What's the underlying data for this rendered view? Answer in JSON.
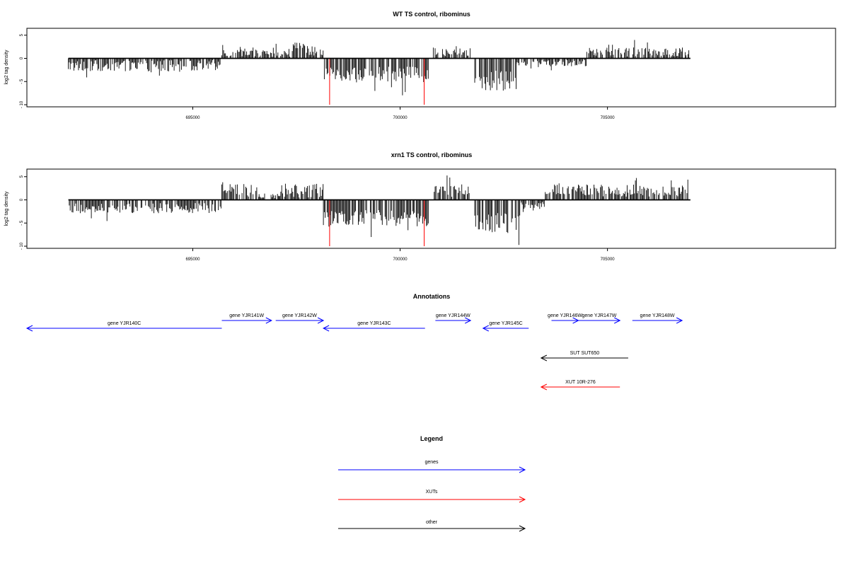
{
  "chart_data": [
    {
      "type": "bar",
      "title": "WT TS control, ribominus",
      "ylabel": "log2 tag density",
      "xlabel": "",
      "xlim": [
        691000,
        710500
      ],
      "ylim": [
        -10,
        6
      ],
      "yticks": [
        -10,
        -5,
        0,
        5
      ],
      "yticks_label": [
        "- 10",
        "- 5",
        "0",
        "5"
      ],
      "xticks": [
        695000,
        700000,
        705000
      ],
      "xticks_label": [
        "695000",
        "700000",
        "705000"
      ],
      "grid": false,
      "segments": [
        {
          "start": 692000,
          "end": 695700,
          "mean": -1.6,
          "amp": 1.2
        },
        {
          "start": 695700,
          "end": 697400,
          "mean": 1.1,
          "amp": 0.8
        },
        {
          "start": 697400,
          "end": 697700,
          "mean": 2.2,
          "amp": 1.2
        },
        {
          "start": 697700,
          "end": 698150,
          "mean": 1.2,
          "amp": 0.7
        },
        {
          "start": 698150,
          "end": 700700,
          "mean": -3.4,
          "amp": 1.6
        },
        {
          "start": 700800,
          "end": 701700,
          "mean": 1.6,
          "amp": 1.1
        },
        {
          "start": 701800,
          "end": 702800,
          "mean": -4.8,
          "amp": 2.2
        },
        {
          "start": 702800,
          "end": 703600,
          "mean": -1.0,
          "amp": 0.6
        },
        {
          "start": 703600,
          "end": 704500,
          "mean": -1.0,
          "amp": 0.7
        },
        {
          "start": 704500,
          "end": 707000,
          "mean": 1.4,
          "amp": 1.0
        }
      ],
      "markers": [
        {
          "x": 698300,
          "y": -10
        },
        {
          "x": 700580,
          "y": -10
        }
      ],
      "colors": {
        "bars": "#000000",
        "markers": "#ff0000"
      }
    },
    {
      "type": "bar",
      "title": "xrn1 TS control, ribominus",
      "ylabel": "log2 tag density",
      "xlabel": "",
      "xlim": [
        691000,
        710500
      ],
      "ylim": [
        -10,
        6
      ],
      "yticks": [
        -10,
        -5,
        0,
        5
      ],
      "yticks_label": [
        "- 10",
        "- 5",
        "0",
        "5"
      ],
      "xticks": [
        695000,
        700000,
        705000
      ],
      "xticks_label": [
        "695000",
        "700000",
        "705000"
      ],
      "grid": false,
      "segments": [
        {
          "start": 692000,
          "end": 695700,
          "mean": -1.8,
          "amp": 1.1
        },
        {
          "start": 695700,
          "end": 696600,
          "mean": 2.0,
          "amp": 1.4
        },
        {
          "start": 696600,
          "end": 697100,
          "mean": 0.8,
          "amp": 0.7
        },
        {
          "start": 697100,
          "end": 698150,
          "mean": 2.0,
          "amp": 1.5
        },
        {
          "start": 698150,
          "end": 700700,
          "mean": -4.0,
          "amp": 1.8
        },
        {
          "start": 700800,
          "end": 701700,
          "mean": 2.0,
          "amp": 1.4
        },
        {
          "start": 701800,
          "end": 702900,
          "mean": -5.0,
          "amp": 2.2
        },
        {
          "start": 702900,
          "end": 703500,
          "mean": -1.2,
          "amp": 0.8
        },
        {
          "start": 703500,
          "end": 707000,
          "mean": 2.0,
          "amp": 1.3
        }
      ],
      "markers": [
        {
          "x": 698300,
          "y": -10
        },
        {
          "x": 700580,
          "y": -10
        }
      ],
      "colors": {
        "bars": "#000000",
        "markers": "#ff0000"
      }
    }
  ],
  "annotations": {
    "title": "Annotations",
    "xlim": [
      691000,
      710500
    ],
    "colors": {
      "genes": "#0000ff",
      "XUTs": "#ff0000",
      "other": "#000000"
    },
    "items": [
      {
        "label": "gene YJR140C",
        "start": 691000,
        "end": 695700,
        "strand": "-",
        "row": 1,
        "kind": "genes"
      },
      {
        "label": "gene YJR141W",
        "start": 695700,
        "end": 696900,
        "strand": "+",
        "row": 0,
        "kind": "genes"
      },
      {
        "label": "gene YJR142W",
        "start": 697000,
        "end": 698150,
        "strand": "+",
        "row": 0,
        "kind": "genes"
      },
      {
        "label": "gene YJR143C",
        "start": 698150,
        "end": 700600,
        "strand": "-",
        "row": 1,
        "kind": "genes"
      },
      {
        "label": "gene YJR144W",
        "start": 700850,
        "end": 701700,
        "strand": "+",
        "row": 0,
        "kind": "genes"
      },
      {
        "label": "gene YJR145C",
        "start": 702000,
        "end": 703100,
        "strand": "-",
        "row": 1,
        "kind": "genes"
      },
      {
        "label": "gene YJR146W",
        "start": 703650,
        "end": 704300,
        "strand": "+",
        "row": 0,
        "kind": "genes"
      },
      {
        "label": "gene YJR147W",
        "start": 704300,
        "end": 705300,
        "strand": "+",
        "row": 0,
        "kind": "genes"
      },
      {
        "label": "gene YJR148W",
        "start": 705600,
        "end": 706800,
        "strand": "+",
        "row": 0,
        "kind": "genes"
      },
      {
        "label": "SUT SUT650",
        "start": 703400,
        "end": 705500,
        "strand": "-",
        "row": 2,
        "kind": "other"
      },
      {
        "label": "XUT 10R-276",
        "start": 703400,
        "end": 705300,
        "strand": "-",
        "row": 3,
        "kind": "XUTs"
      }
    ]
  },
  "legend": {
    "title": "Legend",
    "entries": [
      {
        "label": "genes",
        "color": "#0000ff"
      },
      {
        "label": "XUTs",
        "color": "#ff0000"
      },
      {
        "label": "other",
        "color": "#000000"
      }
    ]
  }
}
